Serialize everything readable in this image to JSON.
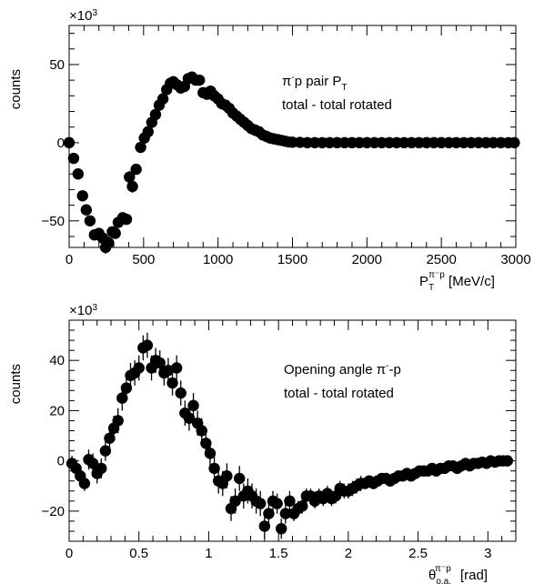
{
  "chart_data": [
    {
      "type": "scatter",
      "ylabel": "counts",
      "y_multiplier": "×10",
      "y_multiplier_exp": "3",
      "xlabel_base": "P",
      "xlabel_sub": "T",
      "xlabel_sup": "π⁻p",
      "xlabel_unit": " [MeV/c]",
      "annotation_line1_main": "π",
      "annotation_line1_sup": "-",
      "annotation_line1_rest": "p pair P",
      "annotation_line1_sub": "T",
      "annotation_line2": "total - total rotated",
      "xlim": [
        0,
        3000
      ],
      "ylim": [
        -67,
        75
      ],
      "xticks": [
        0,
        500,
        1000,
        1500,
        2000,
        2500,
        3000
      ],
      "xtick_labels": [
        "0",
        "500",
        "1000",
        "1500",
        "2000",
        "2500",
        "3000"
      ],
      "yticks": [
        -50,
        0,
        50
      ],
      "ytick_labels": [
        "−50",
        "0",
        "50"
      ],
      "points": [
        [
          0,
          0,
          1
        ],
        [
          30,
          -10,
          2
        ],
        [
          60,
          -20,
          2
        ],
        [
          90,
          -34,
          2
        ],
        [
          115,
          -43,
          2
        ],
        [
          140,
          -50,
          3
        ],
        [
          170,
          -59,
          3
        ],
        [
          200,
          -58,
          3
        ],
        [
          225,
          -61,
          3
        ],
        [
          245,
          -67,
          4
        ],
        [
          265,
          -64,
          4
        ],
        [
          290,
          -57,
          3
        ],
        [
          310,
          -58,
          3
        ],
        [
          330,
          -51,
          3
        ],
        [
          360,
          -48,
          3
        ],
        [
          385,
          -49,
          3
        ],
        [
          405,
          -22,
          4
        ],
        [
          425,
          -28,
          4
        ],
        [
          450,
          -17,
          3
        ],
        [
          480,
          -3,
          3
        ],
        [
          505,
          3,
          3
        ],
        [
          530,
          7,
          3
        ],
        [
          555,
          13,
          3
        ],
        [
          580,
          18,
          3
        ],
        [
          605,
          24,
          3
        ],
        [
          630,
          28,
          3
        ],
        [
          655,
          34,
          3
        ],
        [
          680,
          38,
          3
        ],
        [
          700,
          39,
          3
        ],
        [
          725,
          37,
          3
        ],
        [
          750,
          35,
          3
        ],
        [
          775,
          36,
          3
        ],
        [
          800,
          41,
          3
        ],
        [
          825,
          42,
          3
        ],
        [
          850,
          40,
          3
        ],
        [
          875,
          40,
          3
        ],
        [
          900,
          32,
          3
        ],
        [
          925,
          31,
          3
        ],
        [
          950,
          33,
          3
        ],
        [
          975,
          30,
          3
        ],
        [
          1000,
          28,
          3
        ],
        [
          1025,
          25,
          2
        ],
        [
          1050,
          24,
          2
        ],
        [
          1075,
          22,
          2
        ],
        [
          1100,
          19,
          2
        ],
        [
          1125,
          17,
          2
        ],
        [
          1150,
          15,
          2
        ],
        [
          1175,
          13,
          2
        ],
        [
          1200,
          11,
          2
        ],
        [
          1225,
          9,
          2
        ],
        [
          1250,
          8,
          2
        ],
        [
          1275,
          7,
          2
        ],
        [
          1300,
          5,
          2
        ],
        [
          1325,
          4,
          1
        ],
        [
          1350,
          3,
          1
        ],
        [
          1375,
          2.5,
          1
        ],
        [
          1400,
          2,
          1
        ],
        [
          1425,
          1.5,
          1
        ],
        [
          1450,
          1,
          1
        ],
        [
          1475,
          0.5,
          1
        ],
        [
          1500,
          0.3,
          1
        ],
        [
          1550,
          0.2,
          1
        ],
        [
          1600,
          0,
          1
        ],
        [
          1650,
          0,
          1
        ],
        [
          1700,
          0,
          1
        ],
        [
          1750,
          0,
          1
        ],
        [
          1800,
          0,
          1
        ],
        [
          1850,
          0,
          1
        ],
        [
          1900,
          0,
          1
        ],
        [
          1950,
          0,
          1
        ],
        [
          2000,
          0,
          1
        ],
        [
          2050,
          0,
          1
        ],
        [
          2100,
          0,
          1
        ],
        [
          2150,
          0,
          1
        ],
        [
          2200,
          0,
          1
        ],
        [
          2250,
          0,
          1
        ],
        [
          2300,
          0,
          1
        ],
        [
          2350,
          0,
          1
        ],
        [
          2400,
          0,
          1
        ],
        [
          2450,
          0,
          1
        ],
        [
          2500,
          0,
          1
        ],
        [
          2550,
          0,
          1
        ],
        [
          2600,
          0,
          1
        ],
        [
          2650,
          0,
          1
        ],
        [
          2700,
          0,
          1
        ],
        [
          2750,
          0,
          1
        ],
        [
          2800,
          0,
          1
        ],
        [
          2850,
          0,
          1
        ],
        [
          2900,
          0,
          1
        ],
        [
          2950,
          0,
          1
        ],
        [
          2990,
          0,
          1
        ]
      ]
    },
    {
      "type": "scatter",
      "ylabel": "counts",
      "y_multiplier": "×10",
      "y_multiplier_exp": "3",
      "xlabel_base": "θ",
      "xlabel_sub": "o.a.",
      "xlabel_sup": "π⁻p",
      "xlabel_unit": " [rad]",
      "annotation_line1_main": "Opening angle π",
      "annotation_line1_sup": "-",
      "annotation_line1_rest": "-p",
      "annotation_line2": "total - total rotated",
      "xlim": [
        0,
        3.2
      ],
      "ylim": [
        -32,
        56
      ],
      "xticks": [
        0,
        0.5,
        1,
        1.5,
        2,
        2.5,
        3
      ],
      "xtick_labels": [
        "0",
        "0.5",
        "1",
        "1.5",
        "2",
        "2.5",
        "3"
      ],
      "yticks": [
        -20,
        0,
        20,
        40
      ],
      "ytick_labels": [
        "−20",
        "0",
        "20",
        "40"
      ],
      "points": [
        [
          0.02,
          -1,
          3
        ],
        [
          0.05,
          -3,
          3
        ],
        [
          0.08,
          -6,
          3
        ],
        [
          0.11,
          -9,
          3
        ],
        [
          0.14,
          0.5,
          4
        ],
        [
          0.17,
          -1,
          4
        ],
        [
          0.2,
          -5,
          4
        ],
        [
          0.23,
          -3,
          4
        ],
        [
          0.26,
          4,
          4
        ],
        [
          0.29,
          9,
          4
        ],
        [
          0.32,
          13,
          5
        ],
        [
          0.35,
          16,
          5
        ],
        [
          0.38,
          25,
          5
        ],
        [
          0.41,
          29,
          5
        ],
        [
          0.44,
          34,
          5
        ],
        [
          0.47,
          35,
          5
        ],
        [
          0.5,
          37,
          5
        ],
        [
          0.53,
          45,
          5
        ],
        [
          0.56,
          46,
          5
        ],
        [
          0.59,
          37,
          5
        ],
        [
          0.62,
          40,
          5
        ],
        [
          0.65,
          39,
          5
        ],
        [
          0.68,
          35,
          5
        ],
        [
          0.71,
          36,
          5
        ],
        [
          0.74,
          31,
          5
        ],
        [
          0.77,
          37,
          5
        ],
        [
          0.8,
          27,
          5
        ],
        [
          0.83,
          19,
          5
        ],
        [
          0.86,
          17,
          5
        ],
        [
          0.89,
          22,
          5
        ],
        [
          0.92,
          15,
          5
        ],
        [
          0.95,
          12,
          5
        ],
        [
          0.98,
          7,
          5
        ],
        [
          1.01,
          3,
          5
        ],
        [
          1.04,
          -3,
          5
        ],
        [
          1.07,
          -8,
          5
        ],
        [
          1.1,
          -9,
          5
        ],
        [
          1.13,
          -6,
          5
        ],
        [
          1.16,
          -19,
          5
        ],
        [
          1.19,
          -16,
          5
        ],
        [
          1.22,
          -7,
          5
        ],
        [
          1.25,
          -14,
          5
        ],
        [
          1.28,
          -12,
          5
        ],
        [
          1.31,
          -14,
          5
        ],
        [
          1.34,
          -16,
          5
        ],
        [
          1.37,
          -17,
          5
        ],
        [
          1.4,
          -26,
          5
        ],
        [
          1.43,
          -21,
          4
        ],
        [
          1.46,
          -16,
          4
        ],
        [
          1.49,
          -17,
          4
        ],
        [
          1.52,
          -27,
          4
        ],
        [
          1.55,
          -21,
          4
        ],
        [
          1.58,
          -16,
          4
        ],
        [
          1.61,
          -21,
          3
        ],
        [
          1.64,
          -19,
          3
        ],
        [
          1.67,
          -18,
          3
        ],
        [
          1.7,
          -14,
          3
        ],
        [
          1.73,
          -14,
          3
        ],
        [
          1.76,
          -16,
          3
        ],
        [
          1.79,
          -14,
          3
        ],
        [
          1.82,
          -15,
          3
        ],
        [
          1.85,
          -13,
          3
        ],
        [
          1.88,
          -15,
          3
        ],
        [
          1.91,
          -14,
          3
        ],
        [
          1.94,
          -11,
          3
        ],
        [
          1.97,
          -12,
          3
        ],
        [
          2.0,
          -12,
          3
        ],
        [
          2.03,
          -11,
          3
        ],
        [
          2.06,
          -10,
          3
        ],
        [
          2.09,
          -9,
          3
        ],
        [
          2.12,
          -9,
          2
        ],
        [
          2.15,
          -8,
          2
        ],
        [
          2.18,
          -9,
          2
        ],
        [
          2.21,
          -8,
          2
        ],
        [
          2.24,
          -7,
          2
        ],
        [
          2.27,
          -7,
          2
        ],
        [
          2.3,
          -8,
          2
        ],
        [
          2.33,
          -7,
          2
        ],
        [
          2.36,
          -6,
          2
        ],
        [
          2.39,
          -6,
          2
        ],
        [
          2.42,
          -5,
          2
        ],
        [
          2.45,
          -6,
          2
        ],
        [
          2.48,
          -5,
          2
        ],
        [
          2.51,
          -4,
          2
        ],
        [
          2.54,
          -4,
          2
        ],
        [
          2.57,
          -4,
          2
        ],
        [
          2.6,
          -3,
          2
        ],
        [
          2.63,
          -4,
          2
        ],
        [
          2.66,
          -3,
          2
        ],
        [
          2.69,
          -3,
          2
        ],
        [
          2.72,
          -2,
          2
        ],
        [
          2.75,
          -2,
          2
        ],
        [
          2.78,
          -3,
          2
        ],
        [
          2.81,
          -2,
          2
        ],
        [
          2.84,
          -1,
          2
        ],
        [
          2.87,
          -2,
          2
        ],
        [
          2.9,
          -1,
          2
        ],
        [
          2.93,
          -1,
          2
        ],
        [
          2.96,
          -0.5,
          2
        ],
        [
          2.99,
          -1,
          2
        ],
        [
          3.02,
          0,
          2
        ],
        [
          3.05,
          -0.5,
          2
        ],
        [
          3.08,
          0,
          2
        ],
        [
          3.11,
          0,
          2
        ],
        [
          3.14,
          0,
          2
        ]
      ]
    }
  ]
}
